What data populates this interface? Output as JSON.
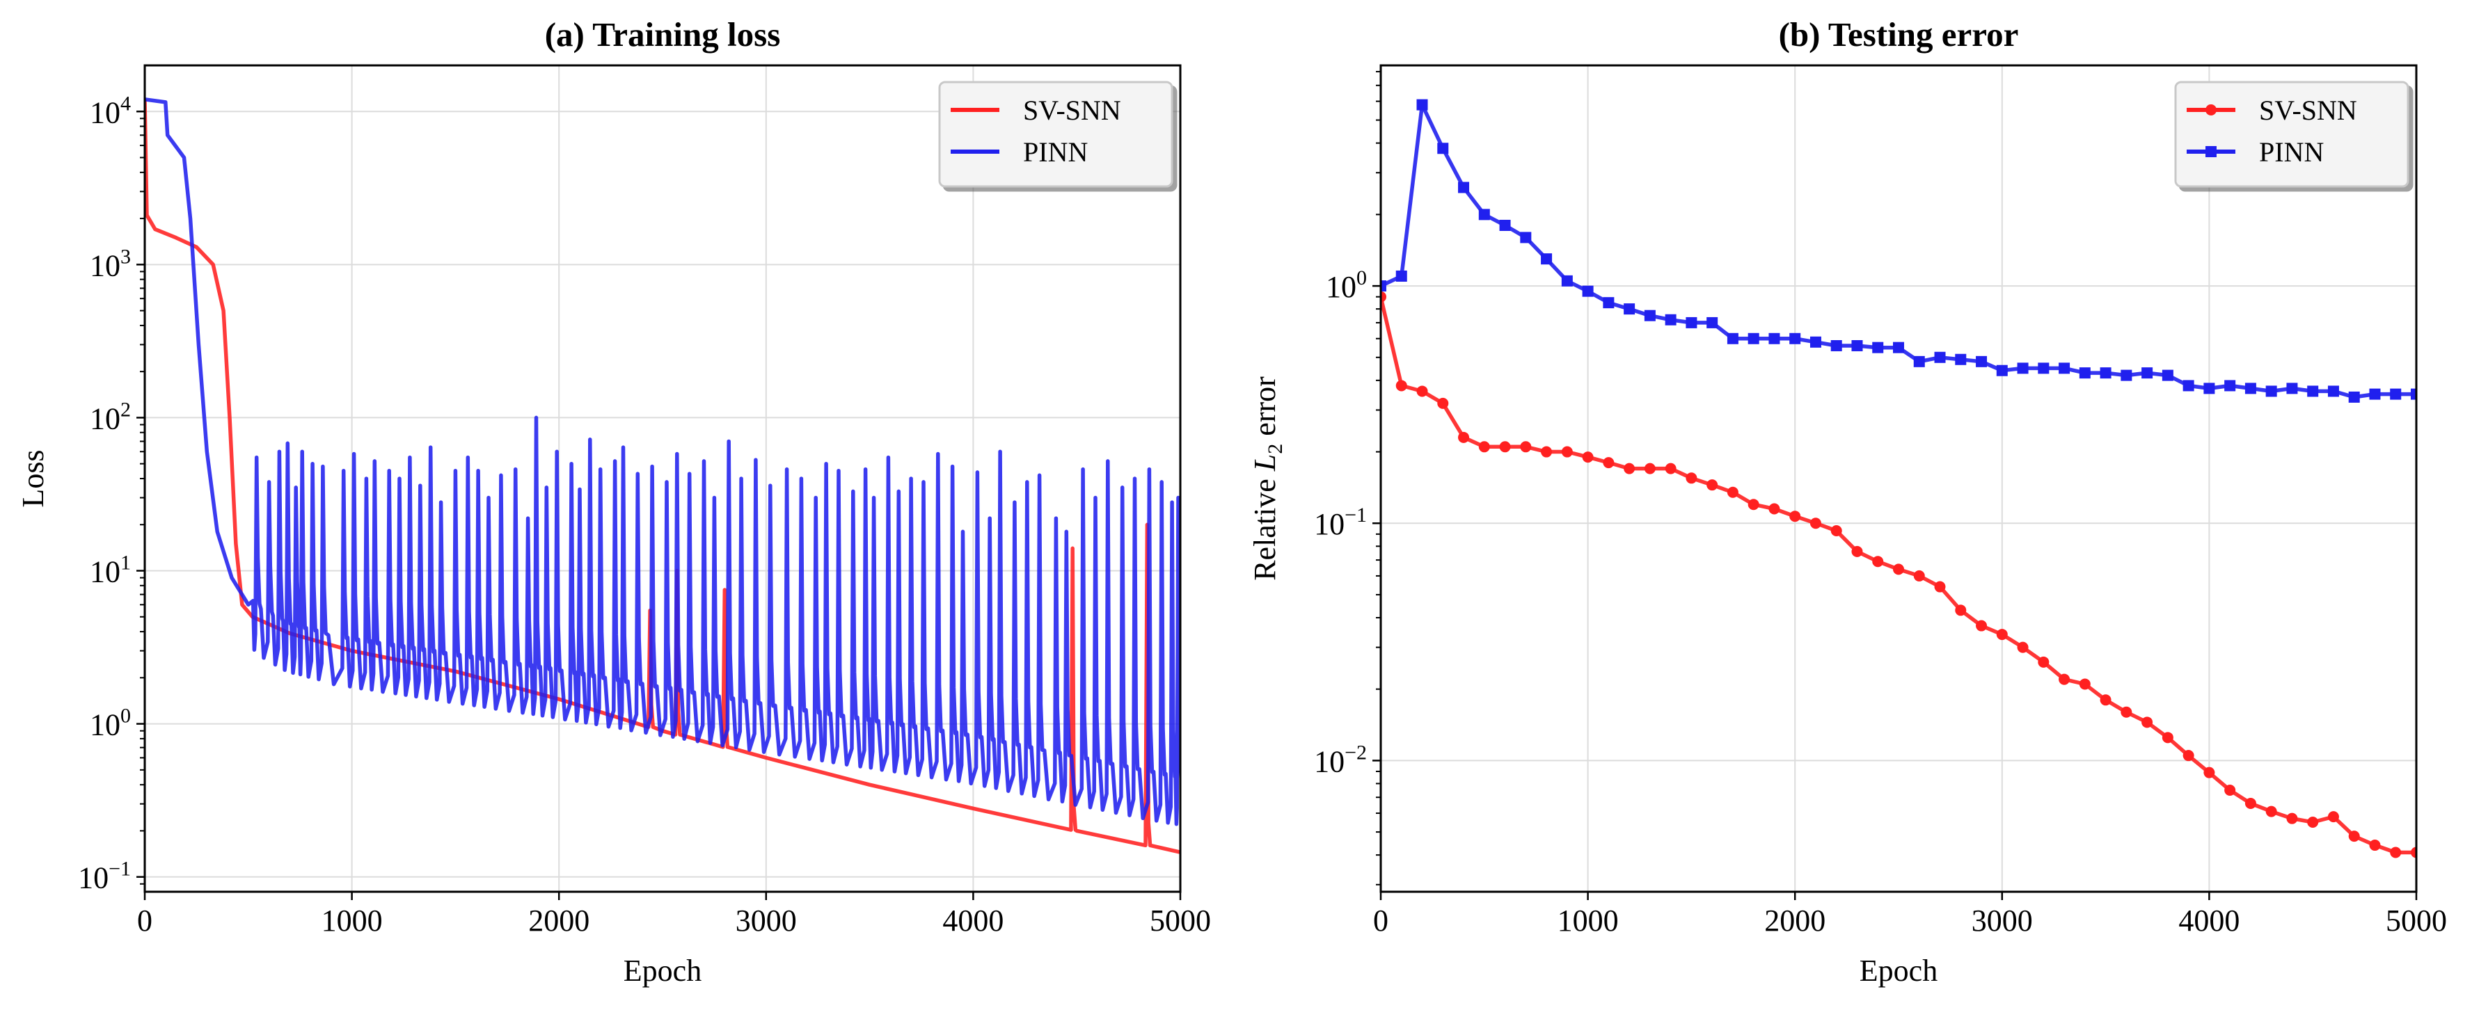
{
  "chart_data": [
    {
      "type": "line",
      "title": "(a) Training loss",
      "xlabel": "Epoch",
      "ylabel": "Loss",
      "yscale": "log",
      "xlim": [
        0,
        5000
      ],
      "ylim": [
        0.08,
        20000
      ],
      "grid": true,
      "legend_position": "top-right",
      "x_ticks": [
        {
          "value": 0,
          "label": "0"
        },
        {
          "value": 1000,
          "label": "1000"
        },
        {
          "value": 2000,
          "label": "2000"
        },
        {
          "value": 3000,
          "label": "3000"
        },
        {
          "value": 4000,
          "label": "4000"
        },
        {
          "value": 5000,
          "label": "5000"
        }
      ],
      "y_ticks": [
        {
          "value": 0.1,
          "base": "10",
          "exp": "−1"
        },
        {
          "value": 1,
          "base": "10",
          "exp": "0"
        },
        {
          "value": 10,
          "base": "10",
          "exp": "1"
        },
        {
          "value": 100,
          "base": "10",
          "exp": "2"
        },
        {
          "value": 1000,
          "base": "10",
          "exp": "3"
        },
        {
          "value": 10000,
          "base": "10",
          "exp": "4"
        }
      ],
      "series": [
        {
          "name": "SV-SNN",
          "color": "#ff2020",
          "points": [
            [
              0,
              12000
            ],
            [
              10,
              2100
            ],
            [
              50,
              1700
            ],
            [
              150,
              1500
            ],
            [
              250,
              1300
            ],
            [
              330,
              1000
            ],
            [
              380,
              500
            ],
            [
              410,
              100
            ],
            [
              440,
              15
            ],
            [
              470,
              6
            ],
            [
              520,
              5
            ],
            [
              700,
              3.9
            ],
            [
              1000,
              3.0
            ],
            [
              1500,
              2.2
            ],
            [
              2000,
              1.45
            ],
            [
              2500,
              0.9
            ],
            [
              3000,
              0.6
            ],
            [
              3500,
              0.4
            ],
            [
              4000,
              0.28
            ],
            [
              4500,
              0.2
            ],
            [
              5000,
              0.145
            ]
          ],
          "spikes": [
            [
              2440,
              5.5
            ],
            [
              2570,
              10
            ],
            [
              2800,
              7.5
            ],
            [
              4480,
              14
            ],
            [
              4840,
              20
            ]
          ]
        },
        {
          "name": "PINN",
          "color": "#2020ee",
          "trend": [
            [
              0,
              12000
            ],
            [
              100,
              11500
            ],
            [
              110,
              7000
            ],
            [
              190,
              5000
            ],
            [
              220,
              2000
            ],
            [
              260,
              300
            ],
            [
              300,
              60
            ],
            [
              350,
              18
            ],
            [
              420,
              9
            ],
            [
              500,
              6
            ],
            [
              700,
              4
            ],
            [
              1000,
              3.2
            ],
            [
              2000,
              2.0
            ],
            [
              3000,
              1.2
            ],
            [
              4000,
              0.75
            ],
            [
              5000,
              0.4
            ]
          ],
          "spikes": [
            [
              540,
              55
            ],
            [
              600,
              38
            ],
            [
              650,
              60
            ],
            [
              690,
              68
            ],
            [
              730,
              35
            ],
            [
              760,
              60
            ],
            [
              810,
              50
            ],
            [
              860,
              48
            ],
            [
              960,
              45
            ],
            [
              1010,
              58
            ],
            [
              1070,
              40
            ],
            [
              1110,
              52
            ],
            [
              1180,
              45
            ],
            [
              1230,
              40
            ],
            [
              1280,
              55
            ],
            [
              1330,
              36
            ],
            [
              1380,
              64
            ],
            [
              1430,
              28
            ],
            [
              1500,
              45
            ],
            [
              1560,
              55
            ],
            [
              1610,
              45
            ],
            [
              1660,
              30
            ],
            [
              1720,
              42
            ],
            [
              1790,
              46
            ],
            [
              1850,
              22
            ],
            [
              1890,
              100
            ],
            [
              1940,
              35
            ],
            [
              1990,
              60
            ],
            [
              2060,
              50
            ],
            [
              2100,
              34
            ],
            [
              2150,
              72
            ],
            [
              2200,
              46
            ],
            [
              2270,
              52
            ],
            [
              2310,
              64
            ],
            [
              2380,
              43
            ],
            [
              2450,
              48
            ],
            [
              2520,
              38
            ],
            [
              2570,
              58
            ],
            [
              2630,
              43
            ],
            [
              2700,
              52
            ],
            [
              2750,
              30
            ],
            [
              2820,
              70
            ],
            [
              2880,
              40
            ],
            [
              2950,
              53
            ],
            [
              3020,
              36
            ],
            [
              3100,
              46
            ],
            [
              3170,
              40
            ],
            [
              3240,
              30
            ],
            [
              3290,
              50
            ],
            [
              3350,
              45
            ],
            [
              3420,
              33
            ],
            [
              3480,
              46
            ],
            [
              3520,
              30
            ],
            [
              3590,
              55
            ],
            [
              3640,
              33
            ],
            [
              3700,
              40
            ],
            [
              3760,
              38
            ],
            [
              3830,
              58
            ],
            [
              3900,
              48
            ],
            [
              3950,
              18
            ],
            [
              4020,
              44
            ],
            [
              4080,
              22
            ],
            [
              4130,
              60
            ],
            [
              4200,
              28
            ],
            [
              4260,
              38
            ],
            [
              4320,
              42
            ],
            [
              4400,
              22
            ],
            [
              4450,
              18
            ],
            [
              4530,
              46
            ],
            [
              4590,
              30
            ],
            [
              4650,
              52
            ],
            [
              4720,
              35
            ],
            [
              4780,
              40
            ],
            [
              4850,
              46
            ],
            [
              4910,
              38
            ],
            [
              4960,
              28
            ],
            [
              4990,
              30
            ]
          ]
        }
      ]
    },
    {
      "type": "line",
      "title": "(b) Testing error",
      "xlabel": "Epoch",
      "ylabel_prefix": "Relative ",
      "ylabel_var": "L",
      "ylabel_sub": "2",
      "ylabel_suffix": " error",
      "yscale": "log",
      "xlim": [
        0,
        5000
      ],
      "ylim": [
        0.0028,
        8.5
      ],
      "grid": true,
      "legend_position": "top-right",
      "x_ticks": [
        {
          "value": 0,
          "label": "0"
        },
        {
          "value": 1000,
          "label": "1000"
        },
        {
          "value": 2000,
          "label": "2000"
        },
        {
          "value": 3000,
          "label": "3000"
        },
        {
          "value": 4000,
          "label": "4000"
        },
        {
          "value": 5000,
          "label": "5000"
        }
      ],
      "y_ticks": [
        {
          "value": 0.01,
          "base": "10",
          "exp": "−2"
        },
        {
          "value": 0.1,
          "base": "10",
          "exp": "−1"
        },
        {
          "value": 1,
          "base": "10",
          "exp": "0"
        }
      ],
      "x": [
        0,
        100,
        200,
        300,
        400,
        500,
        600,
        700,
        800,
        900,
        1000,
        1100,
        1200,
        1300,
        1400,
        1500,
        1600,
        1700,
        1800,
        1900,
        2000,
        2100,
        2200,
        2300,
        2400,
        2500,
        2600,
        2700,
        2800,
        2900,
        3000,
        3100,
        3200,
        3300,
        3400,
        3500,
        3600,
        3700,
        3800,
        3900,
        4000,
        4100,
        4200,
        4300,
        4400,
        4500,
        4600,
        4700,
        4800,
        4900,
        5000
      ],
      "series": [
        {
          "name": "SV-SNN",
          "color": "#ff2020",
          "marker": "circle",
          "values": [
            0.9,
            0.38,
            0.36,
            0.32,
            0.23,
            0.21,
            0.21,
            0.21,
            0.2,
            0.2,
            0.19,
            0.18,
            0.17,
            0.17,
            0.17,
            0.155,
            0.145,
            0.135,
            0.12,
            0.115,
            0.107,
            0.1,
            0.093,
            0.076,
            0.069,
            0.064,
            0.06,
            0.054,
            0.043,
            0.037,
            0.034,
            0.03,
            0.026,
            0.022,
            0.021,
            0.018,
            0.016,
            0.0145,
            0.0125,
            0.0105,
            0.0089,
            0.0075,
            0.0066,
            0.0061,
            0.0057,
            0.0055,
            0.0058,
            0.0048,
            0.0044,
            0.0041,
            0.0041
          ]
        },
        {
          "name": "PINN",
          "color": "#2020ee",
          "marker": "square",
          "values": [
            1.0,
            1.1,
            5.8,
            3.8,
            2.6,
            2.0,
            1.8,
            1.6,
            1.3,
            1.05,
            0.95,
            0.85,
            0.8,
            0.75,
            0.72,
            0.7,
            0.7,
            0.6,
            0.6,
            0.6,
            0.6,
            0.58,
            0.56,
            0.56,
            0.55,
            0.55,
            0.48,
            0.5,
            0.49,
            0.48,
            0.44,
            0.45,
            0.45,
            0.45,
            0.43,
            0.43,
            0.42,
            0.43,
            0.42,
            0.38,
            0.37,
            0.38,
            0.37,
            0.36,
            0.37,
            0.36,
            0.36,
            0.34,
            0.35,
            0.35,
            0.35
          ]
        }
      ]
    }
  ]
}
